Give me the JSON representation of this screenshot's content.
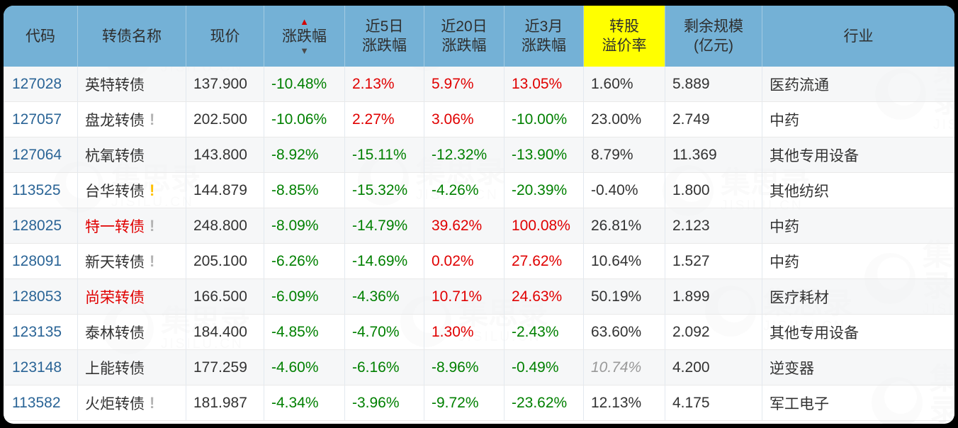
{
  "brand": {
    "name": "集思录",
    "domain": "JISILU.CN"
  },
  "icons": {
    "sort_up": "▲",
    "sort_down": "▼",
    "alert": "!"
  },
  "colors": {
    "header_bg": "#74b1d6",
    "highlight_bg": "#ffff00",
    "up_red": "#e00000",
    "down_green": "#008000",
    "code_blue": "#2a6496",
    "estimate_gray": "#999999"
  },
  "table": {
    "columns": [
      {
        "id": "code",
        "label": "代码"
      },
      {
        "id": "name",
        "label": "转债名称"
      },
      {
        "id": "price",
        "label": "现价"
      },
      {
        "id": "chg",
        "label": "涨跌幅",
        "sorted": true
      },
      {
        "id": "chg5",
        "label": "近5日\n涨跌幅"
      },
      {
        "id": "chg20",
        "label": "近20日\n涨跌幅"
      },
      {
        "id": "chg3m",
        "label": "近3月\n涨跌幅"
      },
      {
        "id": "premium",
        "label": "转股\n溢价率",
        "highlighted": true
      },
      {
        "id": "size",
        "label": "剩余规模\n(亿元)"
      },
      {
        "id": "industry",
        "label": "行业"
      }
    ],
    "rows": [
      {
        "code": "127028",
        "name": "英特转债",
        "name_style": "normal",
        "mark": "none",
        "price": "137.900",
        "chg": {
          "v": "-10.48%",
          "t": "down"
        },
        "chg5": {
          "v": "2.13%",
          "t": "up"
        },
        "chg20": {
          "v": "5.97%",
          "t": "up"
        },
        "chg3m": {
          "v": "13.05%",
          "t": "up"
        },
        "premium": {
          "v": "1.60%",
          "s": "normal"
        },
        "size": "5.889",
        "industry": "医药流通"
      },
      {
        "code": "127057",
        "name": "盘龙转债",
        "name_style": "normal",
        "mark": "gray",
        "price": "202.500",
        "chg": {
          "v": "-10.06%",
          "t": "down"
        },
        "chg5": {
          "v": "2.27%",
          "t": "up"
        },
        "chg20": {
          "v": "3.06%",
          "t": "up"
        },
        "chg3m": {
          "v": "-10.00%",
          "t": "down"
        },
        "premium": {
          "v": "23.00%",
          "s": "normal"
        },
        "size": "2.749",
        "industry": "中药"
      },
      {
        "code": "127064",
        "name": "杭氧转债",
        "name_style": "normal",
        "mark": "none",
        "price": "143.800",
        "chg": {
          "v": "-8.92%",
          "t": "down"
        },
        "chg5": {
          "v": "-15.11%",
          "t": "down"
        },
        "chg20": {
          "v": "-12.32%",
          "t": "down"
        },
        "chg3m": {
          "v": "-13.90%",
          "t": "down"
        },
        "premium": {
          "v": "8.79%",
          "s": "normal"
        },
        "size": "11.369",
        "industry": "其他专用设备"
      },
      {
        "code": "113525",
        "name": "台华转债",
        "name_style": "normal",
        "mark": "yellow",
        "price": "144.879",
        "chg": {
          "v": "-8.85%",
          "t": "down"
        },
        "chg5": {
          "v": "-15.32%",
          "t": "down"
        },
        "chg20": {
          "v": "-4.26%",
          "t": "down"
        },
        "chg3m": {
          "v": "-20.39%",
          "t": "down"
        },
        "premium": {
          "v": "-0.40%",
          "s": "normal"
        },
        "size": "1.800",
        "industry": "其他纺织"
      },
      {
        "code": "128025",
        "name": "特一转债",
        "name_style": "red",
        "mark": "gray",
        "price": "248.800",
        "chg": {
          "v": "-8.09%",
          "t": "down"
        },
        "chg5": {
          "v": "-14.79%",
          "t": "down"
        },
        "chg20": {
          "v": "39.62%",
          "t": "up"
        },
        "chg3m": {
          "v": "100.08%",
          "t": "up"
        },
        "premium": {
          "v": "26.81%",
          "s": "normal"
        },
        "size": "2.123",
        "industry": "中药"
      },
      {
        "code": "128091",
        "name": "新天转债",
        "name_style": "normal",
        "mark": "gray",
        "price": "205.100",
        "chg": {
          "v": "-6.26%",
          "t": "down"
        },
        "chg5": {
          "v": "-14.69%",
          "t": "down"
        },
        "chg20": {
          "v": "0.02%",
          "t": "up"
        },
        "chg3m": {
          "v": "27.62%",
          "t": "up"
        },
        "premium": {
          "v": "10.64%",
          "s": "normal"
        },
        "size": "1.527",
        "industry": "中药"
      },
      {
        "code": "128053",
        "name": "尚荣转债",
        "name_style": "red",
        "mark": "none",
        "price": "166.500",
        "chg": {
          "v": "-6.09%",
          "t": "down"
        },
        "chg5": {
          "v": "-4.36%",
          "t": "down"
        },
        "chg20": {
          "v": "10.71%",
          "t": "up"
        },
        "chg3m": {
          "v": "24.63%",
          "t": "up"
        },
        "premium": {
          "v": "50.19%",
          "s": "normal"
        },
        "size": "1.899",
        "industry": "医疗耗材"
      },
      {
        "code": "123135",
        "name": "泰林转债",
        "name_style": "normal",
        "mark": "none",
        "price": "184.400",
        "chg": {
          "v": "-4.85%",
          "t": "down"
        },
        "chg5": {
          "v": "-4.70%",
          "t": "down"
        },
        "chg20": {
          "v": "1.30%",
          "t": "up"
        },
        "chg3m": {
          "v": "-2.43%",
          "t": "down"
        },
        "premium": {
          "v": "63.60%",
          "s": "normal"
        },
        "size": "2.092",
        "industry": "其他专用设备"
      },
      {
        "code": "123148",
        "name": "上能转债",
        "name_style": "normal",
        "mark": "none",
        "price": "177.259",
        "chg": {
          "v": "-4.60%",
          "t": "down"
        },
        "chg5": {
          "v": "-6.16%",
          "t": "down"
        },
        "chg20": {
          "v": "-8.96%",
          "t": "down"
        },
        "chg3m": {
          "v": "-0.49%",
          "t": "down"
        },
        "premium": {
          "v": "10.74%",
          "s": "estimate"
        },
        "size": "4.200",
        "industry": "逆变器"
      },
      {
        "code": "113582",
        "name": "火炬转债",
        "name_style": "normal",
        "mark": "gray",
        "price": "181.987",
        "chg": {
          "v": "-4.34%",
          "t": "down"
        },
        "chg5": {
          "v": "-3.96%",
          "t": "down"
        },
        "chg20": {
          "v": "-9.72%",
          "t": "down"
        },
        "chg3m": {
          "v": "-23.62%",
          "t": "down"
        },
        "premium": {
          "v": "12.13%",
          "s": "normal"
        },
        "size": "4.175",
        "industry": "军工电子"
      }
    ]
  }
}
